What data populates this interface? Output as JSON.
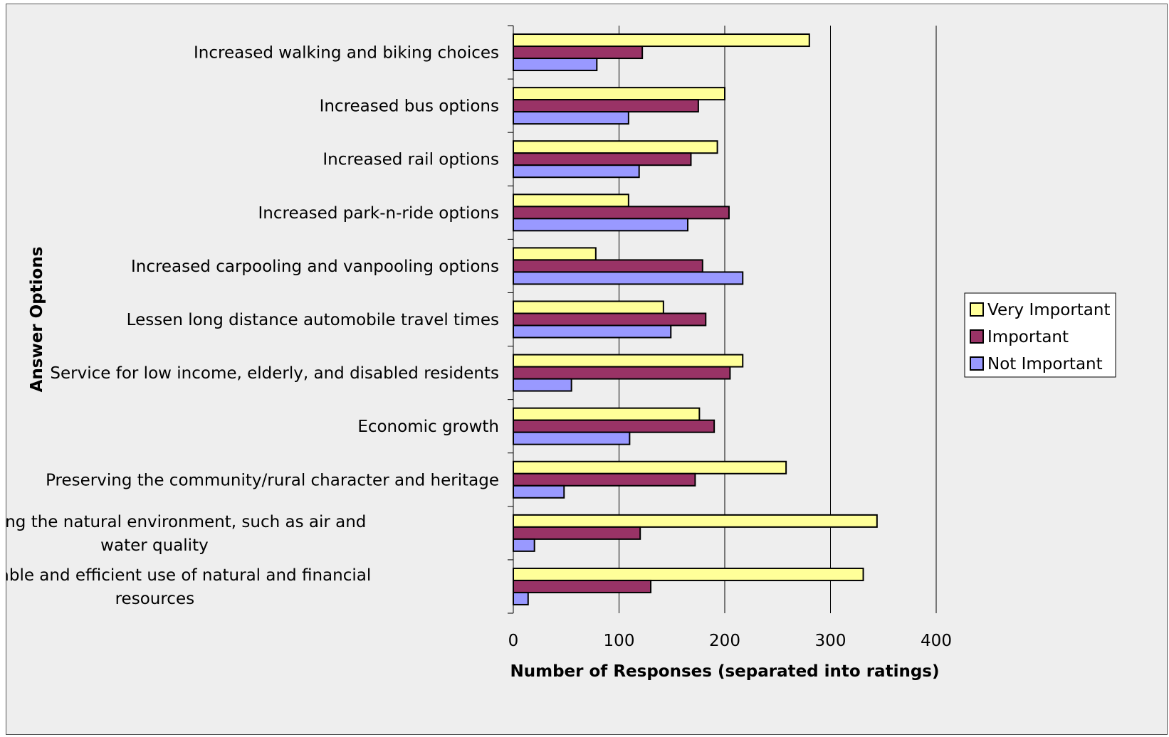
{
  "chart_data": {
    "type": "bar",
    "orientation": "horizontal",
    "categories": [
      "Increased walking and biking choices",
      "Increased bus options",
      "Increased rail options",
      "Increased park-n-ride options",
      "Increased carpooling and vanpooling options",
      "Lessen long distance automobile travel times",
      "Service for low income, elderly, and disabled residents",
      "Economic growth",
      "Preserving the community/rural character and heritage",
      "Protecting the natural environment, such as air and water quality",
      "Sustainable and efficient use of natural and financial resources"
    ],
    "category_lines": [
      [
        "Increased walking and biking choices"
      ],
      [
        "Increased bus options"
      ],
      [
        "Increased rail options"
      ],
      [
        "Increased park-n-ride options"
      ],
      [
        "Increased carpooling and vanpooling options"
      ],
      [
        "Lessen long distance automobile travel times"
      ],
      [
        "Service for low income, elderly, and disabled residents"
      ],
      [
        "Economic growth"
      ],
      [
        "Preserving the community/rural character and heritage"
      ],
      [
        "Protecting the natural environment, such as air and",
        "water quality"
      ],
      [
        "Sustainable and efficient use of natural and financial",
        "resources"
      ]
    ],
    "series": [
      {
        "name": "Very Important",
        "color": "#ffff99",
        "values": [
          280,
          200,
          193,
          109,
          78,
          142,
          217,
          176,
          258,
          344,
          331
        ]
      },
      {
        "name": "Important",
        "color": "#993366",
        "values": [
          122,
          175,
          168,
          204,
          179,
          182,
          205,
          190,
          172,
          120,
          130
        ]
      },
      {
        "name": "Not Important",
        "color": "#9999ff",
        "values": [
          79,
          109,
          119,
          165,
          217,
          149,
          55,
          110,
          48,
          20,
          14
        ]
      }
    ],
    "xlabel": "Number of Responses (separated into ratings)",
    "ylabel": "Answer Options",
    "xlim": [
      0,
      400
    ],
    "xticks": [
      "0",
      "100",
      "200",
      "300",
      "400"
    ],
    "grid": true,
    "legend_position": "right"
  }
}
